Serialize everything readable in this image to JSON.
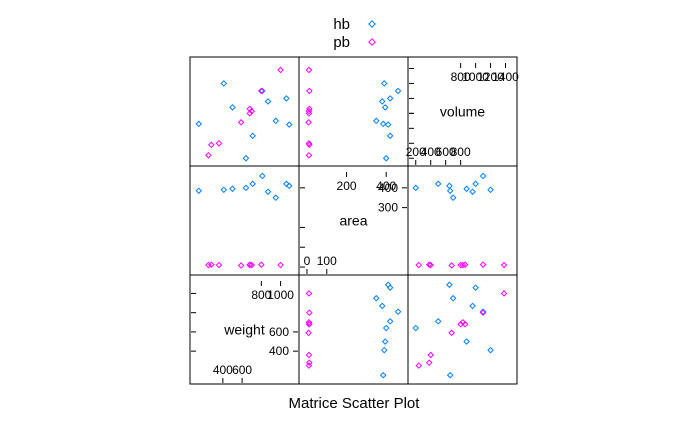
{
  "chart_data": {
    "type": "scatter",
    "title": "Matrice Scatter Plot",
    "variables": [
      "weight",
      "area",
      "volume"
    ],
    "grid": false,
    "legend_position": "top",
    "series": [
      {
        "name": "hb",
        "color": "#0080ff",
        "marker": "diamond",
        "weight": [
          150,
          410,
          500,
          640,
          710,
          810,
          870,
          1060,
          1090,
          950
        ],
        "area": [
          385,
          390,
          395,
          400,
          420,
          460,
          380,
          420,
          410,
          350
        ],
        "volume": [
          660,
          1200,
          880,
          200,
          500,
          1100,
          960,
          1000,
          650,
          700
        ]
      },
      {
        "name": "pb",
        "color": "#ff00ff",
        "marker": "diamond",
        "weight": [
          250,
          280,
          360,
          590,
          680,
          700,
          680,
          800,
          1000
        ],
        "area": [
          10,
          12,
          10,
          8,
          10,
          10,
          12,
          12,
          10
        ],
        "volume": [
          240,
          380,
          400,
          680,
          800,
          830,
          860,
          1100,
          1380
        ]
      }
    ],
    "panels": {
      "weight": {
        "axis_range": [
          100,
          1150
        ],
        "tick_labels_top": [
          "800",
          "1000"
        ],
        "tick_labels_bottom": [
          "400",
          "600"
        ],
        "tick_labels_right": [
          "400",
          "600"
        ]
      },
      "area": {
        "axis_range": [
          -20,
          490
        ],
        "tick_labels_top": [
          "200",
          "400"
        ],
        "tick_labels_bottom": [
          "0",
          "100"
        ],
        "tick_labels_right": [
          "300",
          "400"
        ]
      },
      "volume": {
        "axis_range": [
          150,
          1500
        ],
        "tick_labels_top": [
          "800",
          "1000",
          "1200",
          "1400"
        ],
        "tick_labels_bottom": [
          "200",
          "400",
          "600",
          "800"
        ]
      }
    }
  }
}
